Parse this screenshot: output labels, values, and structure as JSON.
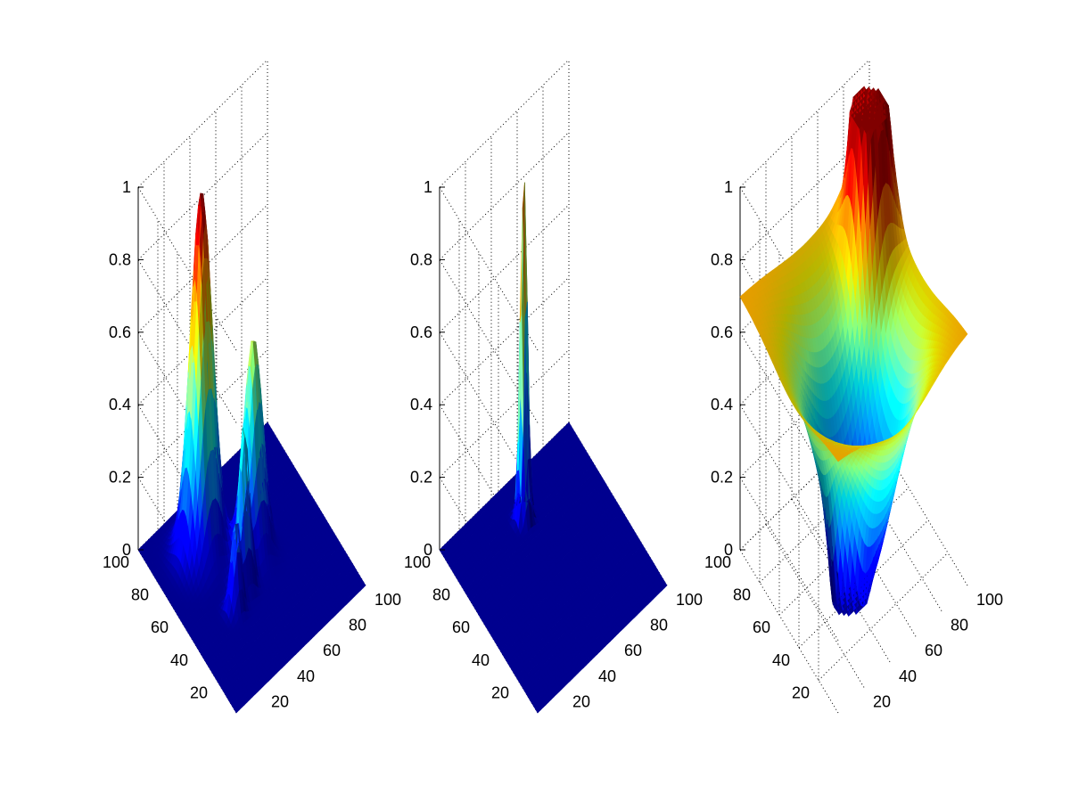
{
  "figure": {
    "background": "#ffffff"
  },
  "colormap": [
    "#00008f",
    "#0000ff",
    "#0080ff",
    "#00d6e0",
    "#80ff80",
    "#c8c800",
    "#ff8000",
    "#d00000",
    "#800000"
  ],
  "chart_data": [
    {
      "type": "surface",
      "title": "",
      "xlabel": "",
      "ylabel": "",
      "zlabel": "",
      "x_range": [
        0,
        100
      ],
      "y_range": [
        0,
        100
      ],
      "z_range": [
        0,
        1
      ],
      "x_ticks": [
        "20",
        "40",
        "60",
        "80",
        "100"
      ],
      "y_ticks": [
        "20",
        "40",
        "60",
        "80",
        "100"
      ],
      "z_ticks": [
        "0",
        "0.2",
        "0.4",
        "0.6",
        "0.8",
        "1"
      ],
      "grid": true,
      "floor": 0,
      "peaks": [
        {
          "x": 30,
          "y": 75,
          "height": 1.0,
          "width": 7
        },
        {
          "x": 55,
          "y": 55,
          "height": 0.6,
          "width": 6
        },
        {
          "x": 40,
          "y": 45,
          "height": 0.45,
          "width": 3.5
        },
        {
          "x": 30,
          "y": 40,
          "height": 0.25,
          "width": 3
        }
      ],
      "wells": []
    },
    {
      "type": "surface",
      "title": "",
      "xlabel": "",
      "ylabel": "",
      "zlabel": "",
      "x_range": [
        0,
        100
      ],
      "y_range": [
        0,
        100
      ],
      "z_range": [
        0,
        1
      ],
      "x_ticks": [
        "20",
        "40",
        "60",
        "80",
        "100"
      ],
      "y_ticks": [
        "20",
        "40",
        "60",
        "80",
        "100"
      ],
      "z_ticks": [
        "0",
        "0.2",
        "0.4",
        "0.6",
        "0.8",
        "1"
      ],
      "grid": true,
      "floor": 0,
      "peaks": [
        {
          "x": 50,
          "y": 80,
          "height": 1.0,
          "width": 2.2
        }
      ],
      "wells": []
    },
    {
      "type": "surface",
      "title": "",
      "xlabel": "",
      "ylabel": "",
      "zlabel": "",
      "x_range": [
        0,
        100
      ],
      "y_range": [
        0,
        100
      ],
      "z_range": [
        0,
        1
      ],
      "x_ticks": [
        "20",
        "40",
        "60",
        "80",
        "100"
      ],
      "y_ticks": [
        "20",
        "40",
        "60",
        "80",
        "100"
      ],
      "z_ticks": [
        "0",
        "0.2",
        "0.4",
        "0.6",
        "0.8",
        "1"
      ],
      "grid": true,
      "floor": 0.7,
      "peaks": [
        {
          "x": 85,
          "y": 80,
          "height": 1.1,
          "width": 8
        }
      ],
      "wells": [
        {
          "x": 50,
          "y": 45,
          "depth": 0.75,
          "width": 22
        },
        {
          "x": 30,
          "y": 40,
          "depth": 0.3,
          "width": 5
        },
        {
          "x": 40,
          "y": 35,
          "depth": 0.3,
          "width": 5
        }
      ]
    }
  ]
}
